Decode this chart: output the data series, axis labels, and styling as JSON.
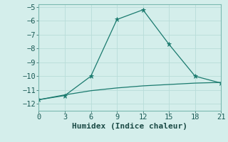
{
  "line1_x": [
    0,
    3,
    6,
    9,
    12,
    15,
    18,
    21
  ],
  "line1_y": [
    -11.7,
    -11.4,
    -10.0,
    -5.9,
    -5.2,
    -7.7,
    -10.0,
    -10.5
  ],
  "line2_x": [
    0,
    3,
    6,
    9,
    12,
    15,
    18,
    21
  ],
  "line2_y": [
    -11.7,
    -11.35,
    -11.05,
    -10.85,
    -10.7,
    -10.6,
    -10.5,
    -10.45
  ],
  "color": "#1a7a6e",
  "xlabel": "Humidex (Indice chaleur)",
  "xlim": [
    0,
    21
  ],
  "ylim": [
    -12.5,
    -4.8
  ],
  "xticks": [
    0,
    3,
    6,
    9,
    12,
    15,
    18,
    21
  ],
  "yticks": [
    -12,
    -11,
    -10,
    -9,
    -8,
    -7,
    -6,
    -5
  ],
  "background_color": "#d4eeeb",
  "grid_color": "#b8ddd9",
  "xlabel_fontsize": 8,
  "tick_fontsize": 7.5
}
